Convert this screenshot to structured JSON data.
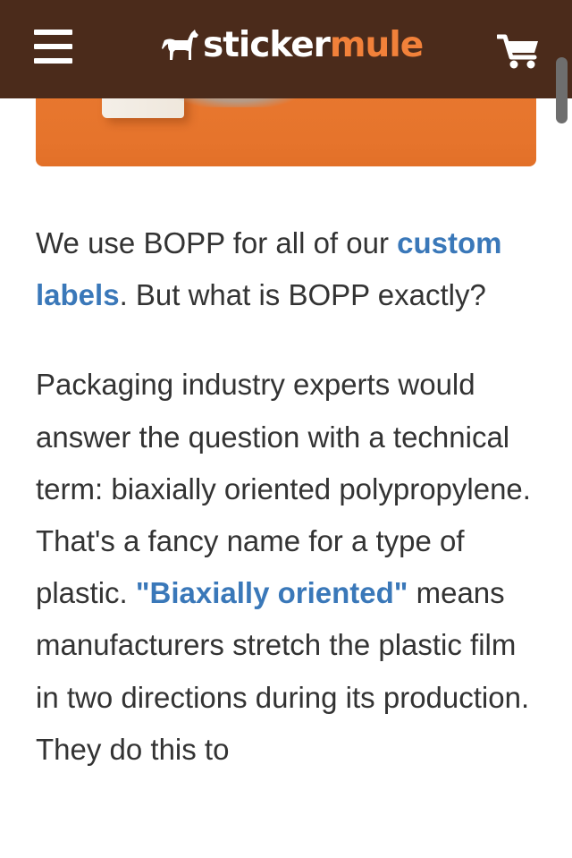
{
  "header": {
    "menu_icon": "hamburger-menu-icon",
    "logo_icon": "mule-icon",
    "logo_sticker": "sticker",
    "logo_mule": "mule",
    "cart_icon": "shopping-cart-icon",
    "background_color": "#4b2b1b",
    "accent_color": "#f2813a"
  },
  "article": {
    "p1_before": "We use BOPP for all of our ",
    "p1_link": "custom labels",
    "p1_after": ". But what is BOPP exactly?",
    "p2_text": "Packaging industry experts would answer the question with a technical term: biaxially oriented polypropylene. That's a fancy name for a type of plastic. ",
    "p2_link": "\"Biaxially oriented\"",
    "p2_after": " means manufacturers stretch the plastic film in two directions during its production. They do this to",
    "link_color": "#3a78b9"
  }
}
